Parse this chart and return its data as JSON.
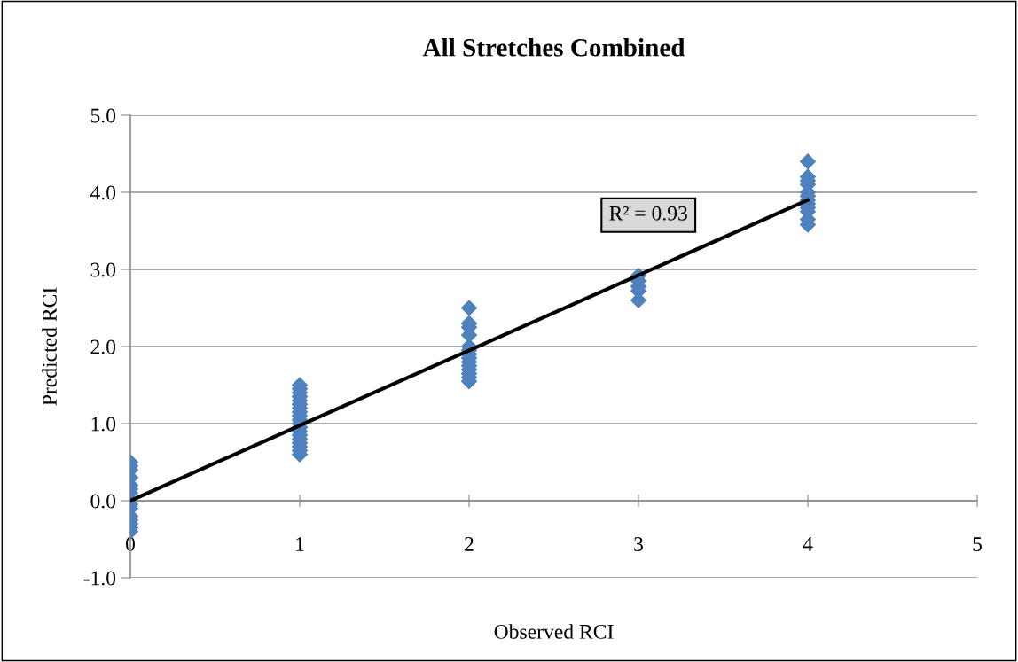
{
  "chart_data": {
    "type": "scatter",
    "title": "All Stretches Combined",
    "xlabel": "Observed RCI",
    "ylabel": "Predicted RCI",
    "annotations": [
      "R² = 0.93"
    ],
    "series": [
      {
        "color": "#4f81bd",
        "marker": "diamond",
        "x": [
          0,
          0,
          0,
          0,
          0,
          0,
          0,
          0,
          0,
          0,
          0,
          0,
          0,
          0,
          1,
          1,
          1,
          1,
          1,
          1,
          1,
          1,
          1,
          1,
          1,
          1,
          1,
          1,
          1,
          1,
          1,
          1,
          1,
          2,
          2,
          2,
          2,
          2,
          2,
          2,
          2,
          2,
          2,
          2,
          2,
          2,
          2,
          3,
          3,
          3,
          3,
          3,
          4,
          4,
          4,
          4,
          4,
          4,
          4,
          4,
          4,
          4,
          4,
          4
        ],
        "values": [
          0.5,
          0.45,
          0.4,
          0.3,
          0.2,
          0.15,
          0.1,
          -0.05,
          -0.1,
          -0.2,
          -0.25,
          -0.3,
          -0.35,
          -0.4,
          1.5,
          1.45,
          1.4,
          1.35,
          1.3,
          1.25,
          1.2,
          1.15,
          1.1,
          1.05,
          1.0,
          0.95,
          0.9,
          0.85,
          0.8,
          0.75,
          0.7,
          0.65,
          0.6,
          2.5,
          2.3,
          2.25,
          2.15,
          2.0,
          1.95,
          1.9,
          1.85,
          1.8,
          1.75,
          1.7,
          1.65,
          1.6,
          1.55,
          2.92,
          2.85,
          2.78,
          2.72,
          2.6,
          4.4,
          4.2,
          4.15,
          4.1,
          4.0,
          3.95,
          3.9,
          3.85,
          3.8,
          3.75,
          3.65,
          3.58
        ]
      },
      {
        "type": "line",
        "color": "#000000",
        "marker": "none",
        "x": [
          0,
          4
        ],
        "values": [
          0,
          3.9
        ]
      }
    ],
    "xlim": [
      0,
      5
    ],
    "xticks": [
      0,
      1,
      2,
      3,
      4,
      5
    ],
    "ylim": [
      -1,
      5
    ],
    "yticks": [
      {
        "value": -1,
        "label": "-1.0"
      },
      {
        "value": 0,
        "label": "0.0"
      },
      {
        "value": 1,
        "label": "1.0"
      },
      {
        "value": 2,
        "label": "2.0"
      },
      {
        "value": 3,
        "label": "3.0"
      },
      {
        "value": 4,
        "label": "4.0"
      },
      {
        "value": 5,
        "label": "5.0"
      }
    ],
    "grid": "y",
    "legend": false
  }
}
